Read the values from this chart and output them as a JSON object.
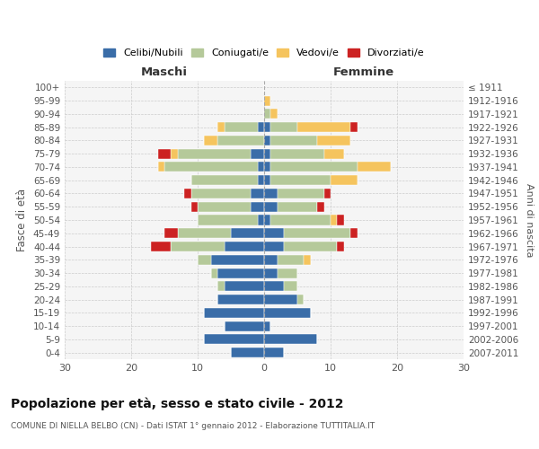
{
  "age_groups": [
    "0-4",
    "5-9",
    "10-14",
    "15-19",
    "20-24",
    "25-29",
    "30-34",
    "35-39",
    "40-44",
    "45-49",
    "50-54",
    "55-59",
    "60-64",
    "65-69",
    "70-74",
    "75-79",
    "80-84",
    "85-89",
    "90-94",
    "95-99",
    "100+"
  ],
  "birth_years": [
    "2007-2011",
    "2002-2006",
    "1997-2001",
    "1992-1996",
    "1987-1991",
    "1982-1986",
    "1977-1981",
    "1972-1976",
    "1967-1971",
    "1962-1966",
    "1957-1961",
    "1952-1956",
    "1947-1951",
    "1942-1946",
    "1937-1941",
    "1932-1936",
    "1927-1931",
    "1922-1926",
    "1917-1921",
    "1912-1916",
    "≤ 1911"
  ],
  "male": {
    "celibi": [
      5,
      9,
      6,
      9,
      7,
      6,
      7,
      8,
      6,
      5,
      1,
      2,
      2,
      1,
      1,
      2,
      0,
      1,
      0,
      0,
      0
    ],
    "coniugati": [
      0,
      0,
      0,
      0,
      0,
      1,
      1,
      2,
      8,
      8,
      9,
      8,
      9,
      10,
      14,
      11,
      7,
      5,
      0,
      0,
      0
    ],
    "vedovi": [
      0,
      0,
      0,
      0,
      0,
      0,
      0,
      0,
      0,
      0,
      0,
      0,
      0,
      0,
      1,
      1,
      2,
      1,
      0,
      0,
      0
    ],
    "divorziati": [
      0,
      0,
      0,
      0,
      0,
      0,
      0,
      0,
      3,
      2,
      0,
      1,
      1,
      0,
      0,
      2,
      0,
      0,
      0,
      0,
      0
    ]
  },
  "female": {
    "nubili": [
      3,
      8,
      1,
      7,
      5,
      3,
      2,
      2,
      3,
      3,
      1,
      2,
      2,
      1,
      1,
      1,
      1,
      1,
      0,
      0,
      0
    ],
    "coniugate": [
      0,
      0,
      0,
      0,
      1,
      2,
      3,
      4,
      8,
      10,
      9,
      6,
      7,
      9,
      13,
      8,
      7,
      4,
      1,
      0,
      0
    ],
    "vedove": [
      0,
      0,
      0,
      0,
      0,
      0,
      0,
      1,
      0,
      0,
      1,
      0,
      0,
      4,
      5,
      3,
      5,
      8,
      1,
      1,
      0
    ],
    "divorziate": [
      0,
      0,
      0,
      0,
      0,
      0,
      0,
      0,
      1,
      1,
      1,
      1,
      1,
      0,
      0,
      0,
      0,
      1,
      0,
      0,
      0
    ]
  },
  "colors": {
    "celibi": "#3a6da8",
    "coniugati": "#b5c99a",
    "vedovi": "#f5c45e",
    "divorziati": "#cc2222"
  },
  "xlim": 30,
  "title": "Popolazione per età, sesso e stato civile - 2012",
  "subtitle": "COMUNE DI NIELLA BELBO (CN) - Dati ISTAT 1° gennaio 2012 - Elaborazione TUTTITALIA.IT",
  "ylabel_left": "Fasce di età",
  "ylabel_right": "Anni di nascita",
  "xlabel_left": "Maschi",
  "xlabel_right": "Femmine",
  "legend_labels": [
    "Celibi/Nubili",
    "Coniugati/e",
    "Vedovi/e",
    "Divorziati/e"
  ],
  "background_color": "#f5f5f5"
}
